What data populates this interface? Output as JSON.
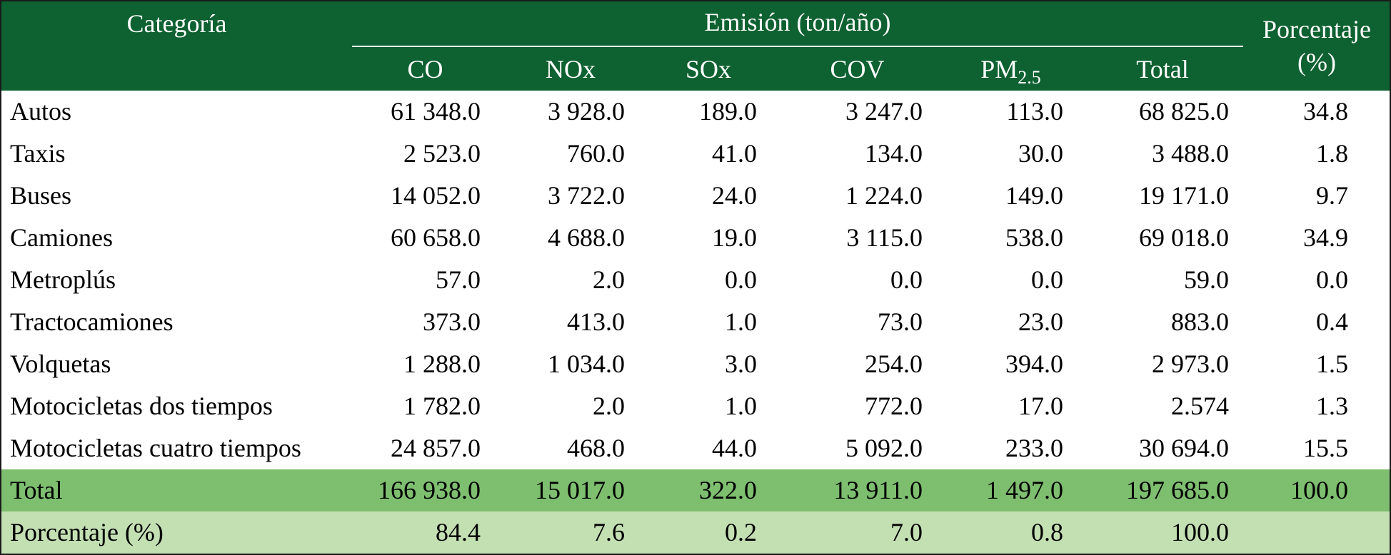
{
  "header": {
    "category": "Categoría",
    "group": "Emisión (ton/año)",
    "percent": "Porcentaje (%)",
    "columns": [
      {
        "text": "CO"
      },
      {
        "text": "NOx"
      },
      {
        "text": "SOx"
      },
      {
        "text": "COV"
      },
      {
        "text": "PM",
        "sub": "2.5"
      },
      {
        "text": "Total"
      }
    ]
  },
  "table": {
    "rows": [
      {
        "label": "Autos",
        "cells": [
          "61 348.0",
          "3 928.0",
          "189.0",
          "3 247.0",
          "113.0",
          "68 825.0",
          "34.8"
        ]
      },
      {
        "label": "Taxis",
        "cells": [
          "2 523.0",
          "760.0",
          "41.0",
          "134.0",
          "30.0",
          "3 488.0",
          "1.8"
        ]
      },
      {
        "label": "Buses",
        "cells": [
          "14 052.0",
          "3 722.0",
          "24.0",
          "1 224.0",
          "149.0",
          "19 171.0",
          "9.7"
        ]
      },
      {
        "label": "Camiones",
        "cells": [
          "60 658.0",
          "4 688.0",
          "19.0",
          "3 115.0",
          "538.0",
          "69 018.0",
          "34.9"
        ]
      },
      {
        "label": "Metroplús",
        "cells": [
          "57.0",
          "2.0",
          "0.0",
          "0.0",
          "0.0",
          "59.0",
          "0.0"
        ]
      },
      {
        "label": "Tractocamiones",
        "cells": [
          "373.0",
          "413.0",
          "1.0",
          "73.0",
          "23.0",
          "883.0",
          "0.4"
        ]
      },
      {
        "label": "Volquetas",
        "cells": [
          "1 288.0",
          "1 034.0",
          "3.0",
          "254.0",
          "394.0",
          "2 973.0",
          "1.5"
        ]
      },
      {
        "label": "Motocicletas dos tiempos",
        "cells": [
          "1 782.0",
          "2.0",
          "1.0",
          "772.0",
          "17.0",
          "2.574",
          "1.3"
        ]
      },
      {
        "label": "Motocicletas cuatro tiempos",
        "cells": [
          "24 857.0",
          "468.0",
          "44.0",
          "5 092.0",
          "233.0",
          "30 694.0",
          "15.5"
        ]
      },
      {
        "label": "Total",
        "cells": [
          "166 938.0",
          "15 017.0",
          "322.0",
          "13 911.0",
          "1 497.0",
          "197 685.0",
          "100.0"
        ]
      },
      {
        "label": "Porcentaje (%)",
        "cells": [
          "84.4",
          "7.6",
          "0.2",
          "7.0",
          "0.8",
          "100.0"
        ]
      }
    ]
  }
}
